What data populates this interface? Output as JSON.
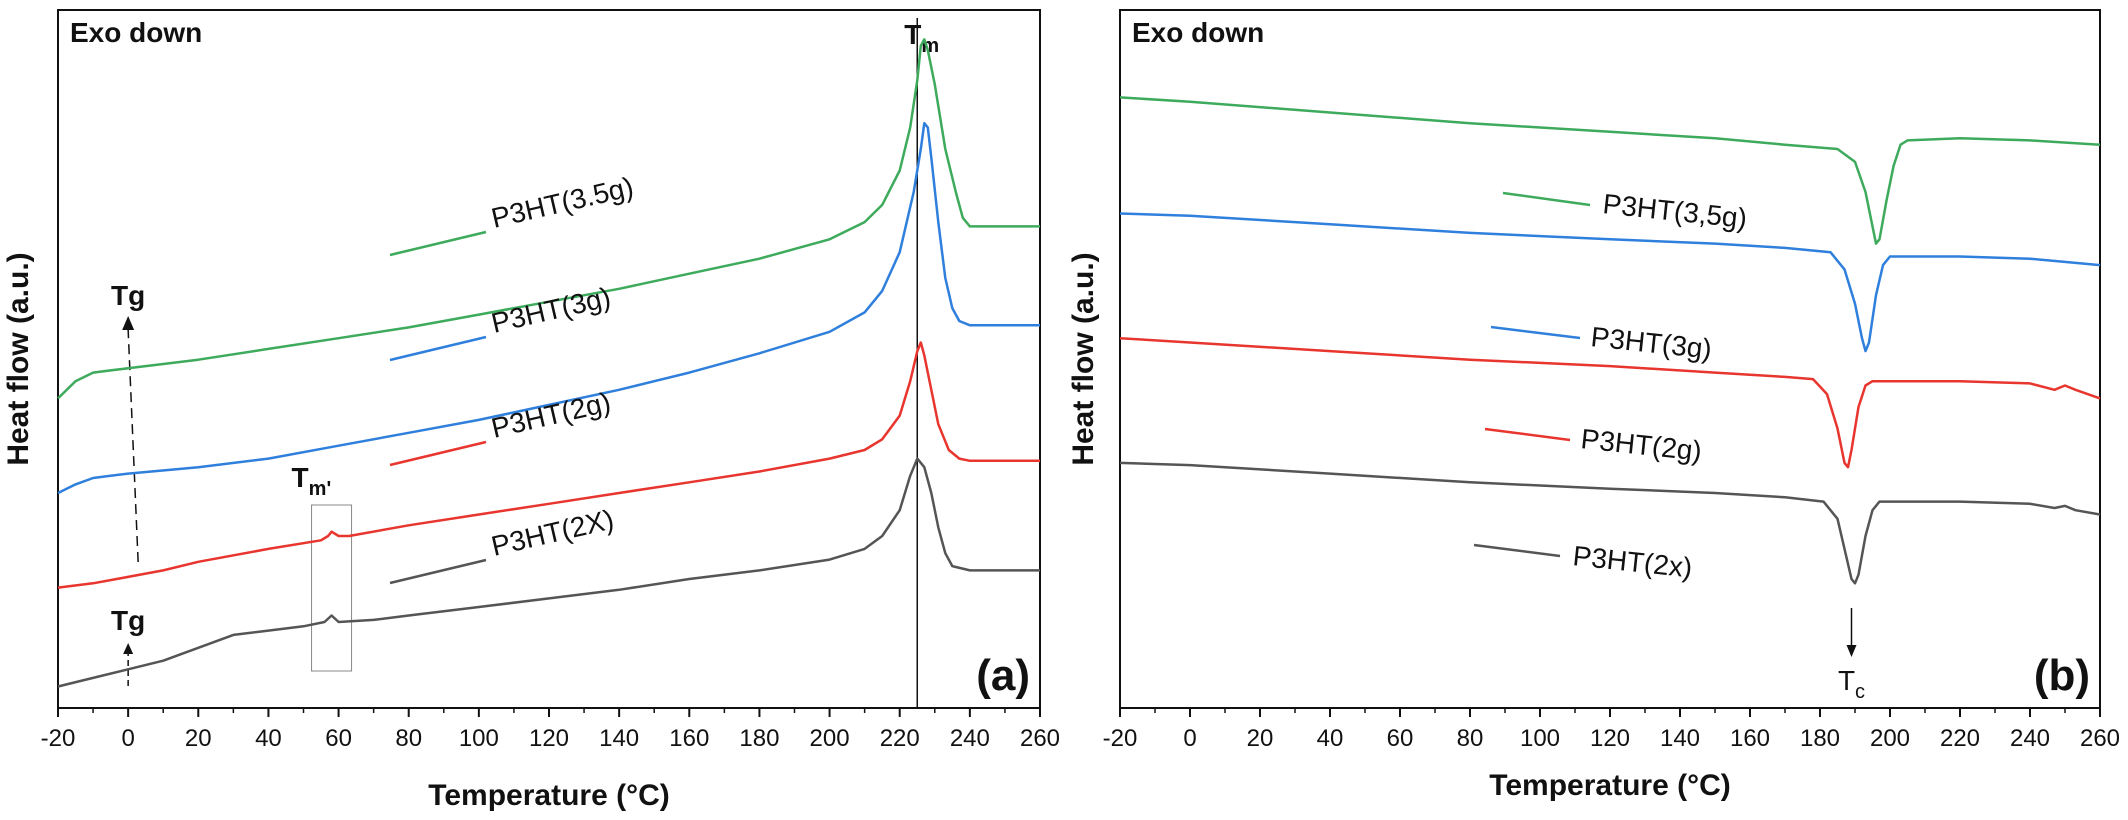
{
  "chart_data": [
    {
      "panel_label": "(a)",
      "type": "line",
      "annotation_top_left": "Exo down",
      "xlabel": "Temperature (°C)",
      "ylabel": "Heat flow (a.u.)",
      "xlim": [
        -20,
        260
      ],
      "x_ticks": [
        "-20",
        "0",
        "20",
        "40",
        "60",
        "80",
        "100",
        "120",
        "140",
        "160",
        "180",
        "200",
        "220",
        "240",
        "260"
      ],
      "y_ticks_shown": false,
      "grid": false,
      "markers": {
        "tm": {
          "main": "T",
          "sub": "m",
          "x": 225
        },
        "tm_prime": {
          "main": "T",
          "sub": "m'",
          "x": 58
        },
        "tg_upper": {
          "text": "Tg",
          "x": 0
        },
        "tg_lower": {
          "text": "Tg",
          "x": 0
        }
      },
      "series": [
        {
          "name": "P3HT(3.5g)",
          "color": "#3daa5c",
          "points": [
            [
              -20,
              0.72
            ],
            [
              -15,
              0.76
            ],
            [
              -10,
              0.78
            ],
            [
              -5,
              0.785
            ],
            [
              0,
              0.79
            ],
            [
              20,
              0.81
            ],
            [
              40,
              0.835
            ],
            [
              60,
              0.86
            ],
            [
              80,
              0.885
            ],
            [
              100,
              0.915
            ],
            [
              120,
              0.945
            ],
            [
              140,
              0.975
            ],
            [
              160,
              1.01
            ],
            [
              180,
              1.045
            ],
            [
              200,
              1.09
            ],
            [
              210,
              1.13
            ],
            [
              215,
              1.17
            ],
            [
              220,
              1.25
            ],
            [
              223,
              1.35
            ],
            [
              225,
              1.46
            ],
            [
              226,
              1.54
            ],
            [
              227,
              1.555
            ],
            [
              228,
              1.53
            ],
            [
              230,
              1.45
            ],
            [
              233,
              1.3
            ],
            [
              236,
              1.2
            ],
            [
              238,
              1.14
            ],
            [
              240,
              1.12
            ],
            [
              250,
              1.12
            ],
            [
              260,
              1.12
            ]
          ]
        },
        {
          "name": "P3HT(3g)",
          "color": "#2f7fdc",
          "points": [
            [
              -20,
              0.5
            ],
            [
              -15,
              0.52
            ],
            [
              -10,
              0.535
            ],
            [
              -5,
              0.54
            ],
            [
              0,
              0.545
            ],
            [
              20,
              0.56
            ],
            [
              40,
              0.58
            ],
            [
              60,
              0.61
            ],
            [
              80,
              0.64
            ],
            [
              100,
              0.67
            ],
            [
              120,
              0.705
            ],
            [
              140,
              0.74
            ],
            [
              160,
              0.78
            ],
            [
              180,
              0.825
            ],
            [
              200,
              0.875
            ],
            [
              210,
              0.92
            ],
            [
              215,
              0.97
            ],
            [
              220,
              1.06
            ],
            [
              224,
              1.2
            ],
            [
              226,
              1.3
            ],
            [
              227,
              1.36
            ],
            [
              228,
              1.35
            ],
            [
              229,
              1.28
            ],
            [
              231,
              1.13
            ],
            [
              233,
              1.0
            ],
            [
              235,
              0.93
            ],
            [
              237,
              0.9
            ],
            [
              240,
              0.89
            ],
            [
              250,
              0.89
            ],
            [
              260,
              0.89
            ]
          ]
        },
        {
          "name": "P3HT(2g)",
          "color": "#e8352e",
          "points": [
            [
              -20,
              0.28
            ],
            [
              -10,
              0.29
            ],
            [
              0,
              0.305
            ],
            [
              10,
              0.32
            ],
            [
              20,
              0.34
            ],
            [
              40,
              0.37
            ],
            [
              55,
              0.39
            ],
            [
              57,
              0.4
            ],
            [
              58,
              0.41
            ],
            [
              60,
              0.4
            ],
            [
              63,
              0.4
            ],
            [
              80,
              0.425
            ],
            [
              100,
              0.45
            ],
            [
              120,
              0.475
            ],
            [
              140,
              0.5
            ],
            [
              160,
              0.525
            ],
            [
              180,
              0.55
            ],
            [
              200,
              0.58
            ],
            [
              210,
              0.6
            ],
            [
              215,
              0.625
            ],
            [
              220,
              0.68
            ],
            [
              223,
              0.76
            ],
            [
              225,
              0.83
            ],
            [
              226,
              0.85
            ],
            [
              227,
              0.82
            ],
            [
              229,
              0.74
            ],
            [
              231,
              0.66
            ],
            [
              234,
              0.6
            ],
            [
              237,
              0.58
            ],
            [
              240,
              0.575
            ],
            [
              250,
              0.575
            ],
            [
              260,
              0.575
            ]
          ]
        },
        {
          "name": "P3HT(2X)",
          "color": "#555555",
          "points": [
            [
              -20,
              0.05
            ],
            [
              -10,
              0.07
            ],
            [
              0,
              0.09
            ],
            [
              10,
              0.11
            ],
            [
              20,
              0.14
            ],
            [
              30,
              0.17
            ],
            [
              40,
              0.18
            ],
            [
              50,
              0.19
            ],
            [
              56,
              0.2
            ],
            [
              58,
              0.215
            ],
            [
              60,
              0.2
            ],
            [
              70,
              0.205
            ],
            [
              80,
              0.215
            ],
            [
              100,
              0.235
            ],
            [
              120,
              0.255
            ],
            [
              140,
              0.275
            ],
            [
              160,
              0.3
            ],
            [
              180,
              0.32
            ],
            [
              200,
              0.345
            ],
            [
              210,
              0.37
            ],
            [
              215,
              0.4
            ],
            [
              220,
              0.46
            ],
            [
              223,
              0.54
            ],
            [
              225,
              0.58
            ],
            [
              227,
              0.56
            ],
            [
              229,
              0.5
            ],
            [
              231,
              0.42
            ],
            [
              233,
              0.36
            ],
            [
              235,
              0.33
            ],
            [
              240,
              0.32
            ],
            [
              250,
              0.32
            ],
            [
              260,
              0.32
            ]
          ]
        }
      ]
    },
    {
      "panel_label": "(b)",
      "type": "line",
      "annotation_top_left": "Exo down",
      "xlabel": "Temperature (°C)",
      "ylabel": "Heat flow (a.u.)",
      "xlim": [
        -20,
        260
      ],
      "x_ticks": [
        "-20",
        "0",
        "20",
        "40",
        "60",
        "80",
        "100",
        "120",
        "140",
        "160",
        "180",
        "200",
        "220",
        "240",
        "260"
      ],
      "y_ticks_shown": false,
      "grid": false,
      "markers": {
        "tc": {
          "main": "T",
          "sub": "c",
          "x": 189
        }
      },
      "series": [
        {
          "name": "P3HT(3,5g)",
          "color": "#3daa5c",
          "points": [
            [
              -20,
              1.42
            ],
            [
              0,
              1.41
            ],
            [
              40,
              1.385
            ],
            [
              80,
              1.36
            ],
            [
              120,
              1.34
            ],
            [
              150,
              1.325
            ],
            [
              170,
              1.31
            ],
            [
              185,
              1.3
            ],
            [
              190,
              1.27
            ],
            [
              193,
              1.2
            ],
            [
              195,
              1.12
            ],
            [
              196,
              1.08
            ],
            [
              197,
              1.09
            ],
            [
              199,
              1.18
            ],
            [
              201,
              1.26
            ],
            [
              203,
              1.31
            ],
            [
              205,
              1.32
            ],
            [
              220,
              1.325
            ],
            [
              240,
              1.32
            ],
            [
              260,
              1.31
            ]
          ]
        },
        {
          "name": "P3HT(3g)",
          "color": "#2f7fdc",
          "points": [
            [
              -20,
              1.15
            ],
            [
              0,
              1.145
            ],
            [
              40,
              1.125
            ],
            [
              80,
              1.105
            ],
            [
              120,
              1.09
            ],
            [
              150,
              1.08
            ],
            [
              170,
              1.07
            ],
            [
              183,
              1.06
            ],
            [
              187,
              1.02
            ],
            [
              190,
              0.94
            ],
            [
              192,
              0.86
            ],
            [
              193,
              0.83
            ],
            [
              194,
              0.85
            ],
            [
              196,
              0.96
            ],
            [
              198,
              1.03
            ],
            [
              200,
              1.05
            ],
            [
              220,
              1.05
            ],
            [
              240,
              1.045
            ],
            [
              260,
              1.03
            ]
          ]
        },
        {
          "name": "P3HT(2g)",
          "color": "#e8352e",
          "points": [
            [
              -20,
              0.86
            ],
            [
              0,
              0.85
            ],
            [
              40,
              0.83
            ],
            [
              80,
              0.81
            ],
            [
              120,
              0.795
            ],
            [
              150,
              0.78
            ],
            [
              170,
              0.77
            ],
            [
              178,
              0.765
            ],
            [
              182,
              0.73
            ],
            [
              185,
              0.65
            ],
            [
              187,
              0.57
            ],
            [
              188,
              0.56
            ],
            [
              189,
              0.6
            ],
            [
              191,
              0.7
            ],
            [
              193,
              0.75
            ],
            [
              195,
              0.76
            ],
            [
              220,
              0.76
            ],
            [
              240,
              0.755
            ],
            [
              247,
              0.74
            ],
            [
              250,
              0.75
            ],
            [
              253,
              0.74
            ],
            [
              260,
              0.72
            ]
          ]
        },
        {
          "name": "P3HT(2x)",
          "color": "#555555",
          "points": [
            [
              -20,
              0.57
            ],
            [
              0,
              0.565
            ],
            [
              40,
              0.545
            ],
            [
              80,
              0.525
            ],
            [
              120,
              0.51
            ],
            [
              150,
              0.5
            ],
            [
              170,
              0.49
            ],
            [
              181,
              0.48
            ],
            [
              185,
              0.44
            ],
            [
              187,
              0.37
            ],
            [
              189,
              0.3
            ],
            [
              190,
              0.29
            ],
            [
              191,
              0.31
            ],
            [
              193,
              0.4
            ],
            [
              195,
              0.46
            ],
            [
              197,
              0.48
            ],
            [
              220,
              0.48
            ],
            [
              240,
              0.475
            ],
            [
              247,
              0.465
            ],
            [
              250,
              0.47
            ],
            [
              253,
              0.46
            ],
            [
              260,
              0.45
            ]
          ]
        }
      ]
    }
  ]
}
